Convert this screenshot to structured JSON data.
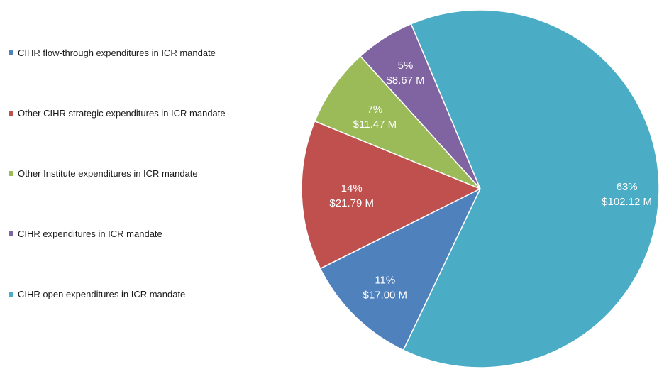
{
  "chart_data": {
    "type": "pie",
    "title": "",
    "legend_position": "left",
    "categories": [
      "CIHR flow-through expenditures in ICR mandate",
      "Other CIHR strategic expenditures in ICR mandate",
      "Other Institute expenditures in ICR mandate",
      "CIHR expenditures in ICR mandate",
      "CIHR open expenditures in ICR mandate"
    ],
    "values": [
      17.0,
      21.79,
      11.47,
      8.67,
      102.12
    ],
    "percent_labels": [
      "11%",
      "14%",
      "7%",
      "5%",
      "63%"
    ],
    "value_labels": [
      "$17.00 M",
      "$21.79 M",
      "$11.47 M",
      "$8.67 M",
      "$102.12 M"
    ],
    "colors": [
      "#4f81bd",
      "#c0504d",
      "#9bbb59",
      "#8064a2",
      "#4bacc6"
    ]
  }
}
